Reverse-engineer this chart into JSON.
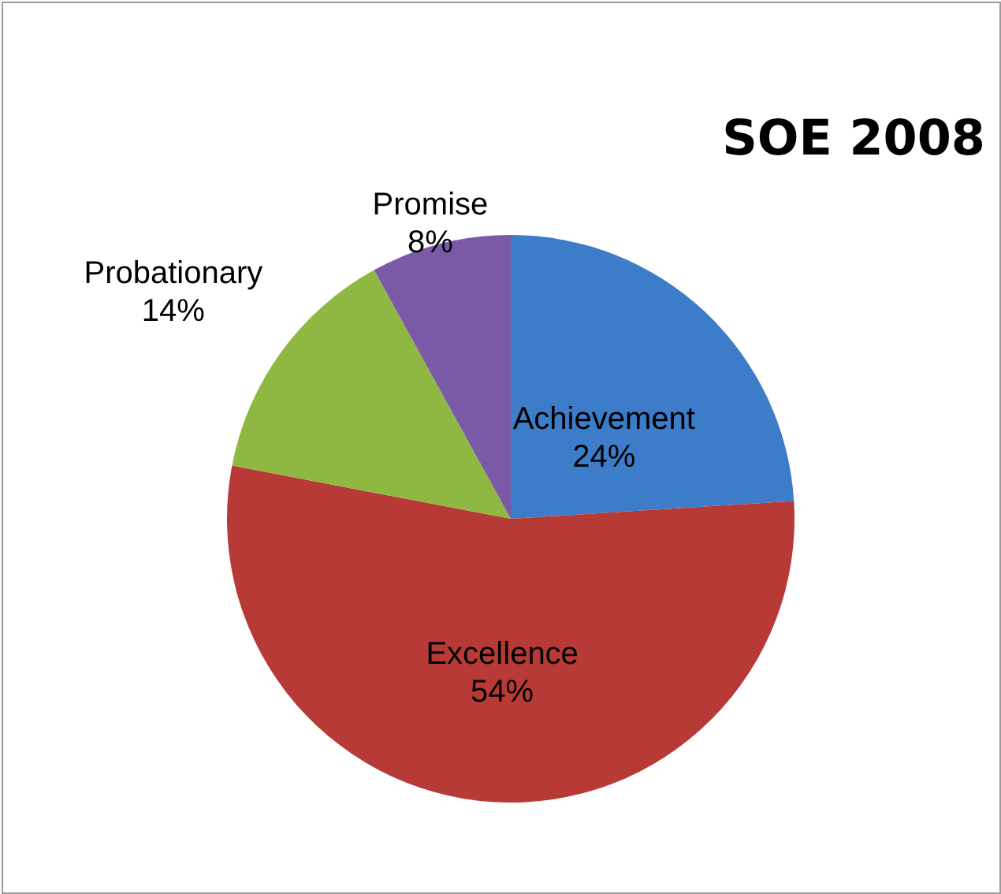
{
  "chart_data": {
    "type": "pie",
    "title": "SOE 2008",
    "categories": [
      "Achievement",
      "Excellence",
      "Probationary",
      "Promise"
    ],
    "values": [
      24,
      54,
      14,
      8
    ],
    "value_labels": [
      "24%",
      "54%",
      "14%",
      "8%"
    ],
    "colors": [
      "#3d7cc9",
      "#b83a36",
      "#8fb842",
      "#7a5aa6"
    ]
  }
}
